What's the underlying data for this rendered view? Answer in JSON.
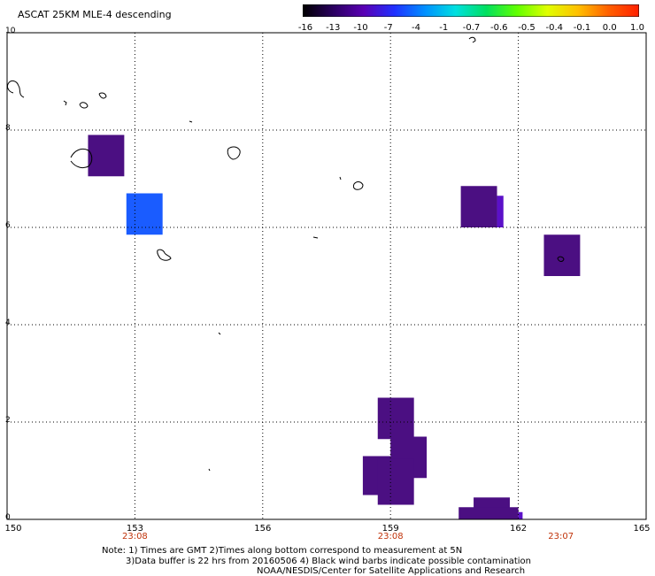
{
  "title": "ASCAT 25KM MLE-4 descending",
  "colorbar": {
    "labels": [
      "-16",
      "-13",
      "-10",
      "-7",
      "-4",
      "-1",
      "-0.7",
      "-0.6",
      "-0.5",
      "-0.4",
      "-0.1",
      "0.0",
      "1.0"
    ],
    "stops": [
      "#000000",
      "#2a0060",
      "#5a00b4",
      "#2030ff",
      "#0090ff",
      "#00e0e0",
      "#00e060",
      "#60ff00",
      "#e0ff00",
      "#ffc000",
      "#ff6000",
      "#ff2000"
    ]
  },
  "axes": {
    "x_ticks": [
      "150",
      "153",
      "156",
      "159",
      "162",
      "165"
    ],
    "y_ticks": [
      "0",
      "2",
      "4",
      "6",
      "8",
      "10"
    ],
    "time_labels": [
      "23:08",
      "23:08",
      "23:07"
    ],
    "xlim": [
      150,
      165
    ],
    "ylim": [
      0,
      10
    ]
  },
  "cells": [
    {
      "lon0": 151.9,
      "lon1": 152.75,
      "lat0": 7.05,
      "lat1": 7.9,
      "color": "#4b0f82"
    },
    {
      "lon0": 152.8,
      "lon1": 153.65,
      "lat0": 5.85,
      "lat1": 6.7,
      "color": "#1a5cff"
    },
    {
      "lon0": 160.65,
      "lon1": 161.5,
      "lat0": 6.0,
      "lat1": 6.85,
      "color": "#4b0f82"
    },
    {
      "lon0": 161.5,
      "lon1": 161.65,
      "lat0": 6.0,
      "lat1": 6.65,
      "color": "#5b10c8"
    },
    {
      "lon0": 162.6,
      "lon1": 163.45,
      "lat0": 5.0,
      "lat1": 5.85,
      "color": "#4b0f82"
    },
    {
      "lon0": 158.7,
      "lon1": 159.55,
      "lat0": 1.65,
      "lat1": 2.5,
      "color": "#4b0f82"
    },
    {
      "lon0": 159.0,
      "lon1": 159.85,
      "lat0": 0.85,
      "lat1": 1.7,
      "color": "#4b0f82"
    },
    {
      "lon0": 158.35,
      "lon1": 159.0,
      "lat0": 0.5,
      "lat1": 1.3,
      "color": "#4b0f82"
    },
    {
      "lon0": 158.7,
      "lon1": 159.55,
      "lat0": 0.3,
      "lat1": 1.25,
      "color": "#4b0f82"
    },
    {
      "lon0": 160.95,
      "lon1": 161.8,
      "lat0": 0.2,
      "lat1": 0.45,
      "color": "#4b0f82"
    },
    {
      "lon0": 160.6,
      "lon1": 162.0,
      "lat0": 0.0,
      "lat1": 0.25,
      "color": "#4b0f82"
    },
    {
      "lon0": 162.0,
      "lon1": 162.1,
      "lat0": 0.0,
      "lat1": 0.15,
      "color": "#5b10c8"
    }
  ],
  "notes": {
    "line1": "Note: 1) Times are GMT 2)Times along bottom correspond to measurement at 5N",
    "line2": "3)Data buffer is 22 hrs from 20160506 4) Black wind barbs indicate possible contamination",
    "line3": "NOAA/NESDIS/Center for Satellite Applications and Research"
  }
}
